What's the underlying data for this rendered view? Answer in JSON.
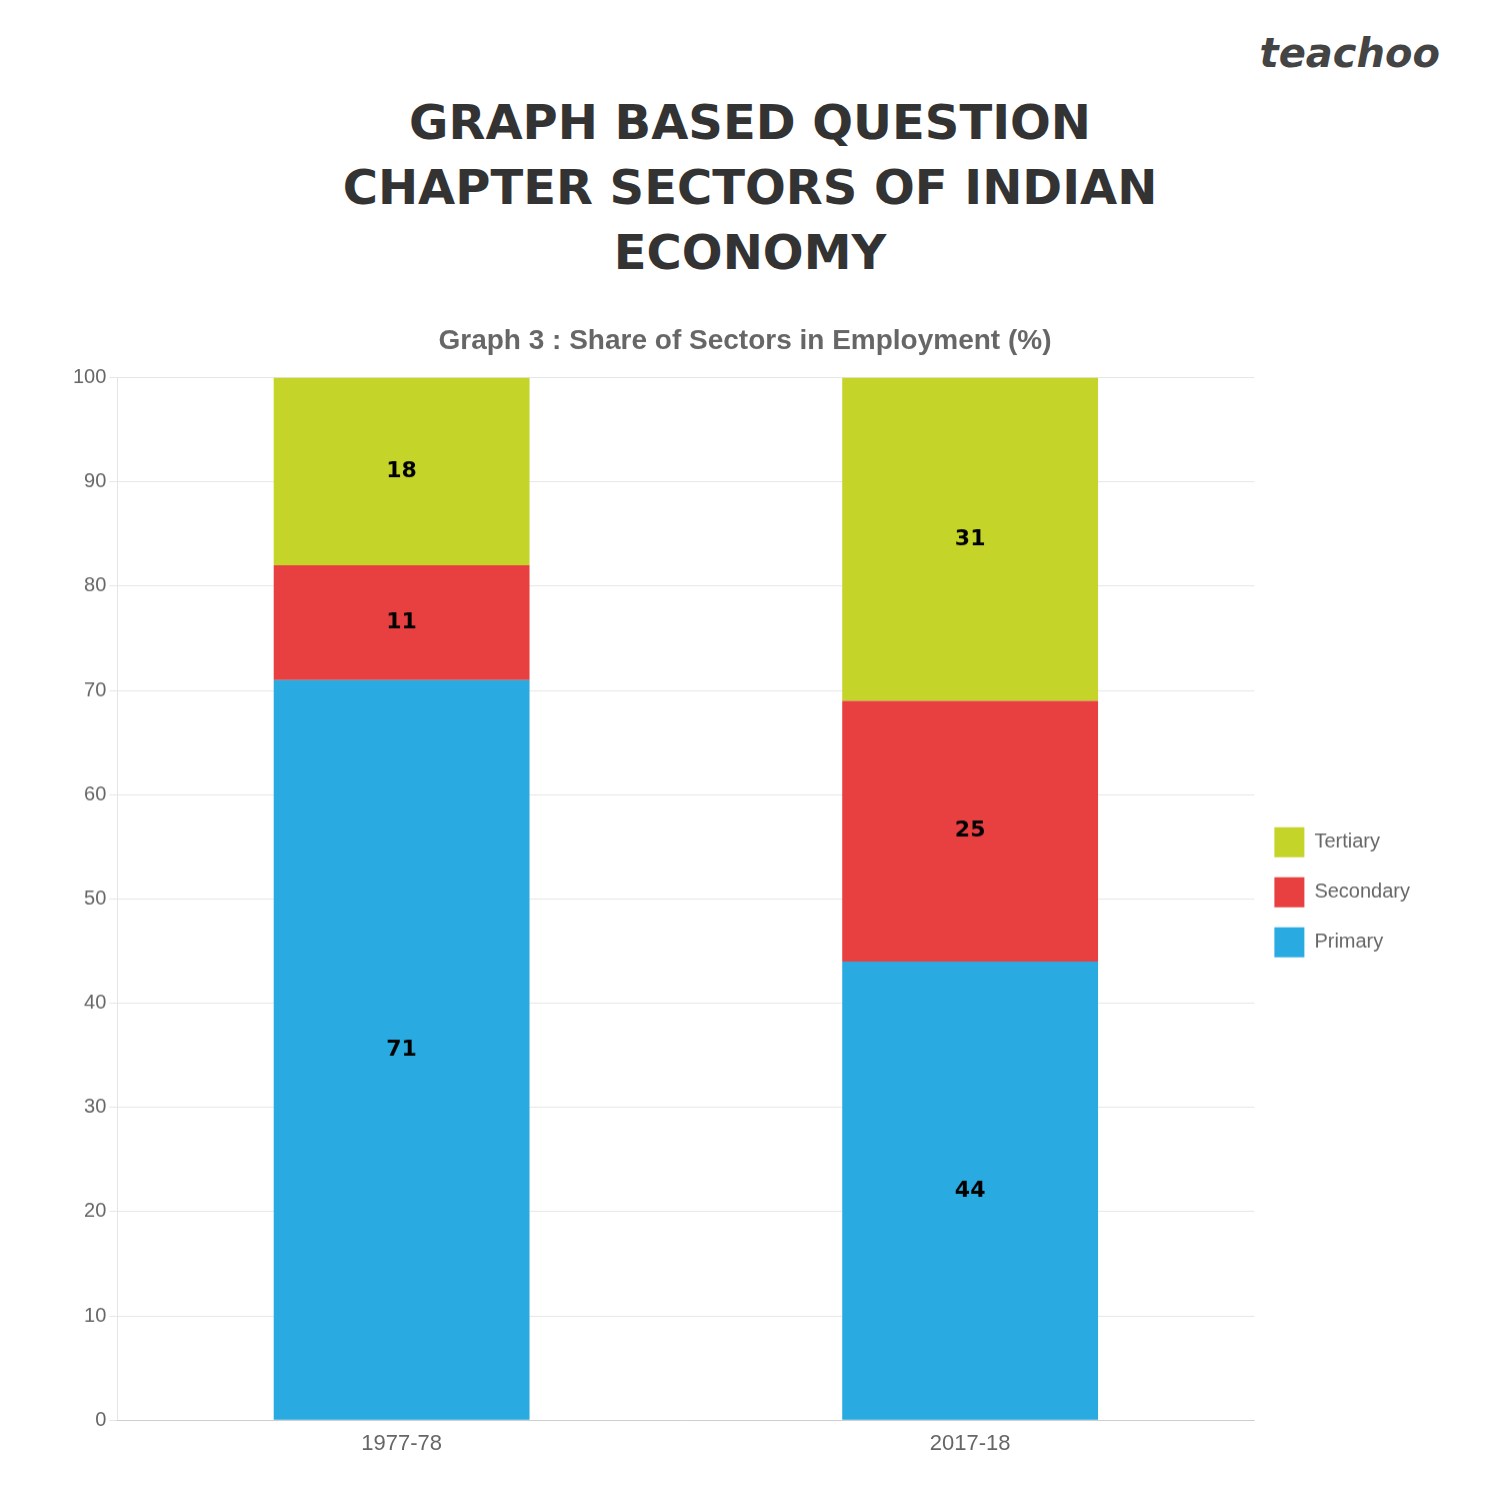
{
  "chart_data": {
    "type": "bar",
    "stacked": true,
    "title": "Graph 3 : Share of Sectors in Employment (%)",
    "annotations": [
      "teachoo",
      "GRAPH BASED QUESTION",
      "CHAPTER  SECTORS OF INDIAN",
      "ECONOMY"
    ],
    "categories": [
      "1977-78",
      "2017-18"
    ],
    "series": [
      {
        "name": "Primary",
        "color": "#29abe2",
        "values": [
          71,
          44
        ]
      },
      {
        "name": "Secondary",
        "color": "#e84040",
        "values": [
          11,
          25
        ]
      },
      {
        "name": "Tertiary",
        "color": "#c5d428",
        "values": [
          18,
          31
        ]
      }
    ],
    "ylim": [
      0,
      100
    ],
    "yticks": [
      0,
      10,
      20,
      30,
      40,
      50,
      60,
      70,
      80,
      90,
      100
    ],
    "grid": true,
    "legend": "right",
    "data_labels": true
  }
}
